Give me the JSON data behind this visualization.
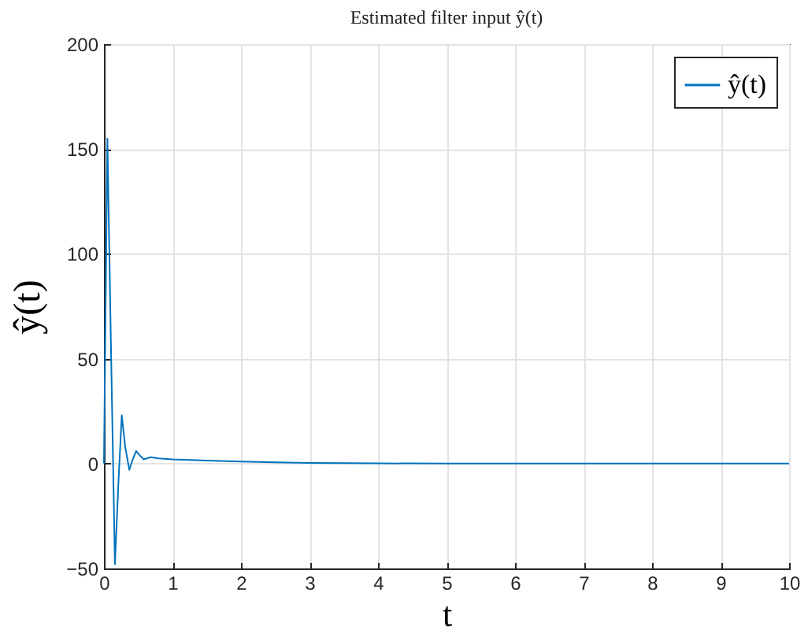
{
  "chart_data": {
    "type": "line",
    "title": "Estimated filter input ŷ(t)",
    "xlabel": "t",
    "ylabel": "ŷ(t)",
    "xlim": [
      0,
      10
    ],
    "xticks": [
      0,
      1,
      2,
      3,
      4,
      5,
      6,
      7,
      8,
      9,
      10
    ],
    "ylim": [
      -50,
      200
    ],
    "yticks": [
      -50,
      0,
      50,
      100,
      150,
      200
    ],
    "grid": true,
    "legend": "top right",
    "marker": "none",
    "line_style": "solid",
    "x": [
      0,
      0.05,
      0.1,
      0.16,
      0.21,
      0.26,
      0.31,
      0.37,
      0.42,
      0.47,
      0.52,
      0.58,
      0.68,
      0.8,
      1,
      1.5,
      2,
      2.5,
      3,
      4,
      5,
      6,
      7,
      8,
      9,
      10
    ],
    "series": [
      {
        "name": "ŷ(t)",
        "color": "#0072bd",
        "values": [
          0,
          155,
          60,
          -48,
          -10,
          23,
          8,
          -3,
          2,
          6,
          4,
          2,
          3,
          2.5,
          2,
          1.4,
          1,
          0.6,
          0.3,
          0.1,
          0,
          0,
          0,
          0,
          0,
          0
        ]
      }
    ]
  }
}
